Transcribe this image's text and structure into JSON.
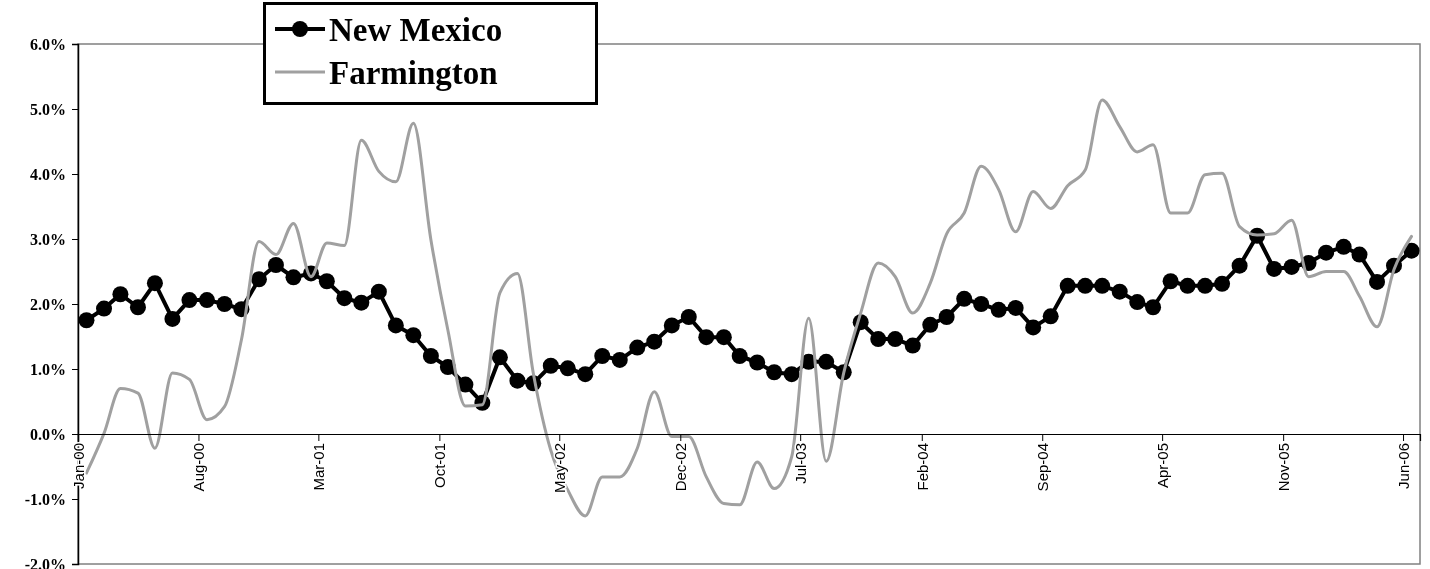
{
  "chart_data": {
    "type": "line",
    "x": [
      "2000-01-16",
      "2000-02-16",
      "2000-03-16",
      "2000-04-16",
      "2000-05-16",
      "2000-06-16",
      "2000-07-16",
      "2000-08-16",
      "2000-09-16",
      "2000-10-16",
      "2000-11-16",
      "2000-12-16",
      "2001-01-16",
      "2001-02-16",
      "2001-03-16",
      "2001-04-16",
      "2001-05-16",
      "2001-06-16",
      "2001-07-16",
      "2001-08-16",
      "2001-09-16",
      "2001-10-16",
      "2001-11-16",
      "2001-12-16",
      "2002-01-16",
      "2002-02-16",
      "2002-03-16",
      "2002-04-16",
      "2002-05-16",
      "2002-06-16",
      "2002-07-16",
      "2002-08-16",
      "2002-09-16",
      "2002-10-16",
      "2002-11-16",
      "2002-12-16",
      "2003-01-16",
      "2003-02-16",
      "2003-03-16",
      "2003-04-16",
      "2003-05-16",
      "2003-06-16",
      "2003-07-16",
      "2003-08-16",
      "2003-09-16",
      "2003-10-16",
      "2003-11-16",
      "2003-12-16",
      "2004-01-16",
      "2004-02-16",
      "2004-03-16",
      "2004-04-16",
      "2004-05-16",
      "2004-06-16",
      "2004-07-16",
      "2004-08-16",
      "2004-09-16",
      "2004-10-16",
      "2004-11-16",
      "2004-12-16",
      "2005-01-16",
      "2005-02-16",
      "2005-03-16",
      "2005-04-16",
      "2005-05-16",
      "2005-06-16",
      "2005-07-16",
      "2005-08-16",
      "2005-09-16",
      "2005-10-16",
      "2005-11-16",
      "2005-12-16",
      "2006-01-16",
      "2006-02-16",
      "2006-03-16",
      "2006-04-16",
      "2006-05-16",
      "2006-06-16"
    ],
    "series": [
      {
        "name": "New Mexico",
        "color": "#000000",
        "marker": "circle",
        "values": [
          1.75,
          1.93,
          2.15,
          1.95,
          2.32,
          1.77,
          2.06,
          2.06,
          2.0,
          1.92,
          2.38,
          2.6,
          2.41,
          2.47,
          2.35,
          2.09,
          2.02,
          2.19,
          1.67,
          1.52,
          1.2,
          1.03,
          0.76,
          0.48,
          1.18,
          0.82,
          0.78,
          1.05,
          1.01,
          0.92,
          1.2,
          1.14,
          1.33,
          1.42,
          1.67,
          1.8,
          1.49,
          1.49,
          1.2,
          1.1,
          0.95,
          0.92,
          1.11,
          1.11,
          0.95,
          1.72,
          1.46,
          1.46,
          1.36,
          1.68,
          1.8,
          2.08,
          2.0,
          1.91,
          1.94,
          1.64,
          1.81,
          2.28,
          2.28,
          2.28,
          2.19,
          2.03,
          1.95,
          2.35,
          2.28,
          2.28,
          2.31,
          2.59,
          3.05,
          2.54,
          2.57,
          2.63,
          2.79,
          2.88,
          2.76,
          2.34,
          2.59,
          2.82
        ]
      },
      {
        "name": "Farmington",
        "color": "#a0a0a0",
        "marker": "none",
        "values": [
          -0.6,
          0.01,
          0.7,
          0.63,
          -0.22,
          0.94,
          0.84,
          0.22,
          0.42,
          1.45,
          2.96,
          2.76,
          3.24,
          2.42,
          2.94,
          2.9,
          4.52,
          4.04,
          3.88,
          4.78,
          2.99,
          1.6,
          0.43,
          0.45,
          2.17,
          2.47,
          0.94,
          -0.25,
          -0.86,
          -1.26,
          -0.66,
          -0.66,
          -0.22,
          0.65,
          -0.04,
          -0.04,
          -0.66,
          -1.07,
          -1.09,
          -0.43,
          -0.84,
          -0.35,
          1.78,
          -0.42,
          0.94,
          1.86,
          2.63,
          2.42,
          1.86,
          2.32,
          3.08,
          3.4,
          4.12,
          3.76,
          3.11,
          3.73,
          3.47,
          3.82,
          4.06,
          5.14,
          4.73,
          4.34,
          4.45,
          3.4,
          3.4,
          3.99,
          4.01,
          3.19,
          3.06,
          3.08,
          3.29,
          2.42,
          2.5,
          2.5,
          2.12,
          1.65,
          2.53,
          3.04
        ]
      }
    ],
    "xlim": [
      "2000-01-01",
      "2006-07-01"
    ],
    "xticks": [
      {
        "value": "2000-01-01",
        "label": "Jan-00"
      },
      {
        "value": "2000-08-01",
        "label": "Aug-00"
      },
      {
        "value": "2001-03-01",
        "label": "Mar-01"
      },
      {
        "value": "2001-10-01",
        "label": "Oct-01"
      },
      {
        "value": "2002-05-01",
        "label": "May-02"
      },
      {
        "value": "2002-12-01",
        "label": "Dec-02"
      },
      {
        "value": "2003-07-01",
        "label": "Jul-03"
      },
      {
        "value": "2004-02-01",
        "label": "Feb-04"
      },
      {
        "value": "2004-09-01",
        "label": "Sep-04"
      },
      {
        "value": "2005-04-01",
        "label": "Apr-05"
      },
      {
        "value": "2005-11-01",
        "label": "Nov-05"
      },
      {
        "value": "2006-06-01",
        "label": "Jun-06"
      }
    ],
    "ylim": [
      -2,
      6
    ],
    "yticks": [
      {
        "value": -2,
        "label": "-2.0%"
      },
      {
        "value": -1,
        "label": "-1.0%"
      },
      {
        "value": 0,
        "label": "0.0%"
      },
      {
        "value": 1,
        "label": "1.0%"
      },
      {
        "value": 2,
        "label": "2.0%"
      },
      {
        "value": 3,
        "label": "3.0%"
      },
      {
        "value": 4,
        "label": "4.0%"
      },
      {
        "value": 5,
        "label": "5.0%"
      },
      {
        "value": 6,
        "label": "6.0%"
      }
    ],
    "grid": false,
    "legend": "top"
  }
}
